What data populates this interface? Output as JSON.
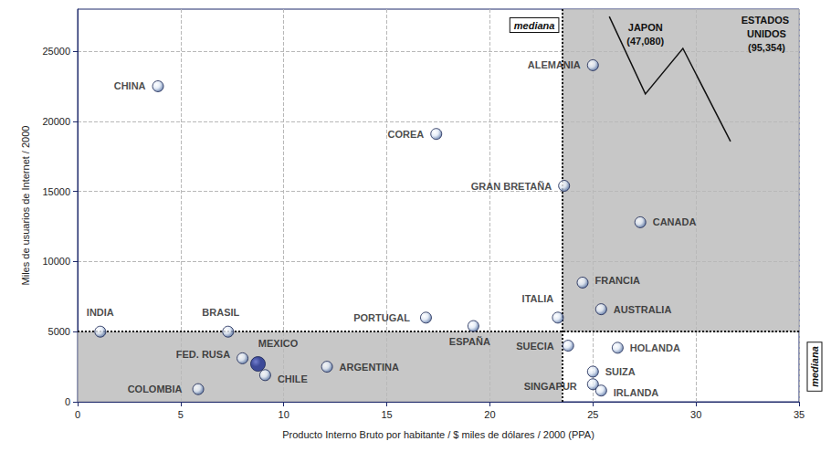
{
  "chart_data": {
    "type": "scatter",
    "x_label": "Producto Interno Bruto por habitante / $ miles de dólares / 2000 (PPA)",
    "y_label": "Miles de usuarios de Internet / 2000",
    "labels": [
      "CHINA",
      "COREA",
      "GRAN BRETAÑA",
      "ALEMANIA",
      "CANADA",
      "FRANCIA",
      "AUSTRALIA",
      "ITALIA",
      "PORTUGAL",
      "ESPAÑA",
      "INDIA",
      "BRASIL",
      "FED. RUSA",
      "MEXICO",
      "CHILE",
      "ARGENTINA",
      "COLOMBIA",
      "SUECIA",
      "HOLANDA",
      "SUIZA",
      "SINGAPUR",
      "IRLANDA"
    ],
    "x": [
      3.9,
      17.4,
      23.6,
      25.0,
      27.3,
      24.5,
      25.4,
      23.3,
      16.9,
      19.2,
      1.1,
      7.3,
      8.0,
      8.75,
      9.1,
      12.1,
      5.85,
      23.8,
      26.2,
      25.0,
      25.0,
      25.4
    ],
    "y": [
      22500,
      19100,
      15400,
      24000,
      12800,
      8500,
      6600,
      6000,
      6000,
      5400,
      5000,
      5000,
      3100,
      2700,
      1900,
      2500,
      900,
      4000,
      3850,
      2150,
      1250,
      800
    ],
    "colors": [
      "#3b5b94",
      "#3b5b94",
      "#3b5b94",
      "#3b5b94",
      "#3b5b94",
      "#3b5b94",
      "#3b5b94",
      "#3b5b94",
      "#3b5b94",
      "#3b5b94",
      "#3b5b94",
      "#3b5b94",
      "#3b5b94",
      "#1a2a8c",
      "#3b5b94",
      "#3b5b94",
      "#3b5b94",
      "#3b5b94",
      "#3b5b94",
      "#3b5b94",
      "#3b5b94",
      "#3b5b94"
    ],
    "medians": {
      "x": 23.5,
      "y": 5000,
      "label": "mediana"
    },
    "annotations": [
      {
        "text": "JAPON",
        "value": 47080,
        "label": "(47,080)"
      },
      {
        "text": "ESTADOS UNIDOS",
        "value": 95354,
        "label": "(95,354)"
      }
    ],
    "xlim": [
      0,
      35
    ],
    "xticks": [
      0,
      5,
      10,
      15,
      20,
      25,
      30,
      35
    ],
    "ylim": [
      0,
      28000
    ],
    "yticks": [
      0,
      5000,
      10000,
      15000,
      20000,
      25000
    ],
    "grid": true
  }
}
